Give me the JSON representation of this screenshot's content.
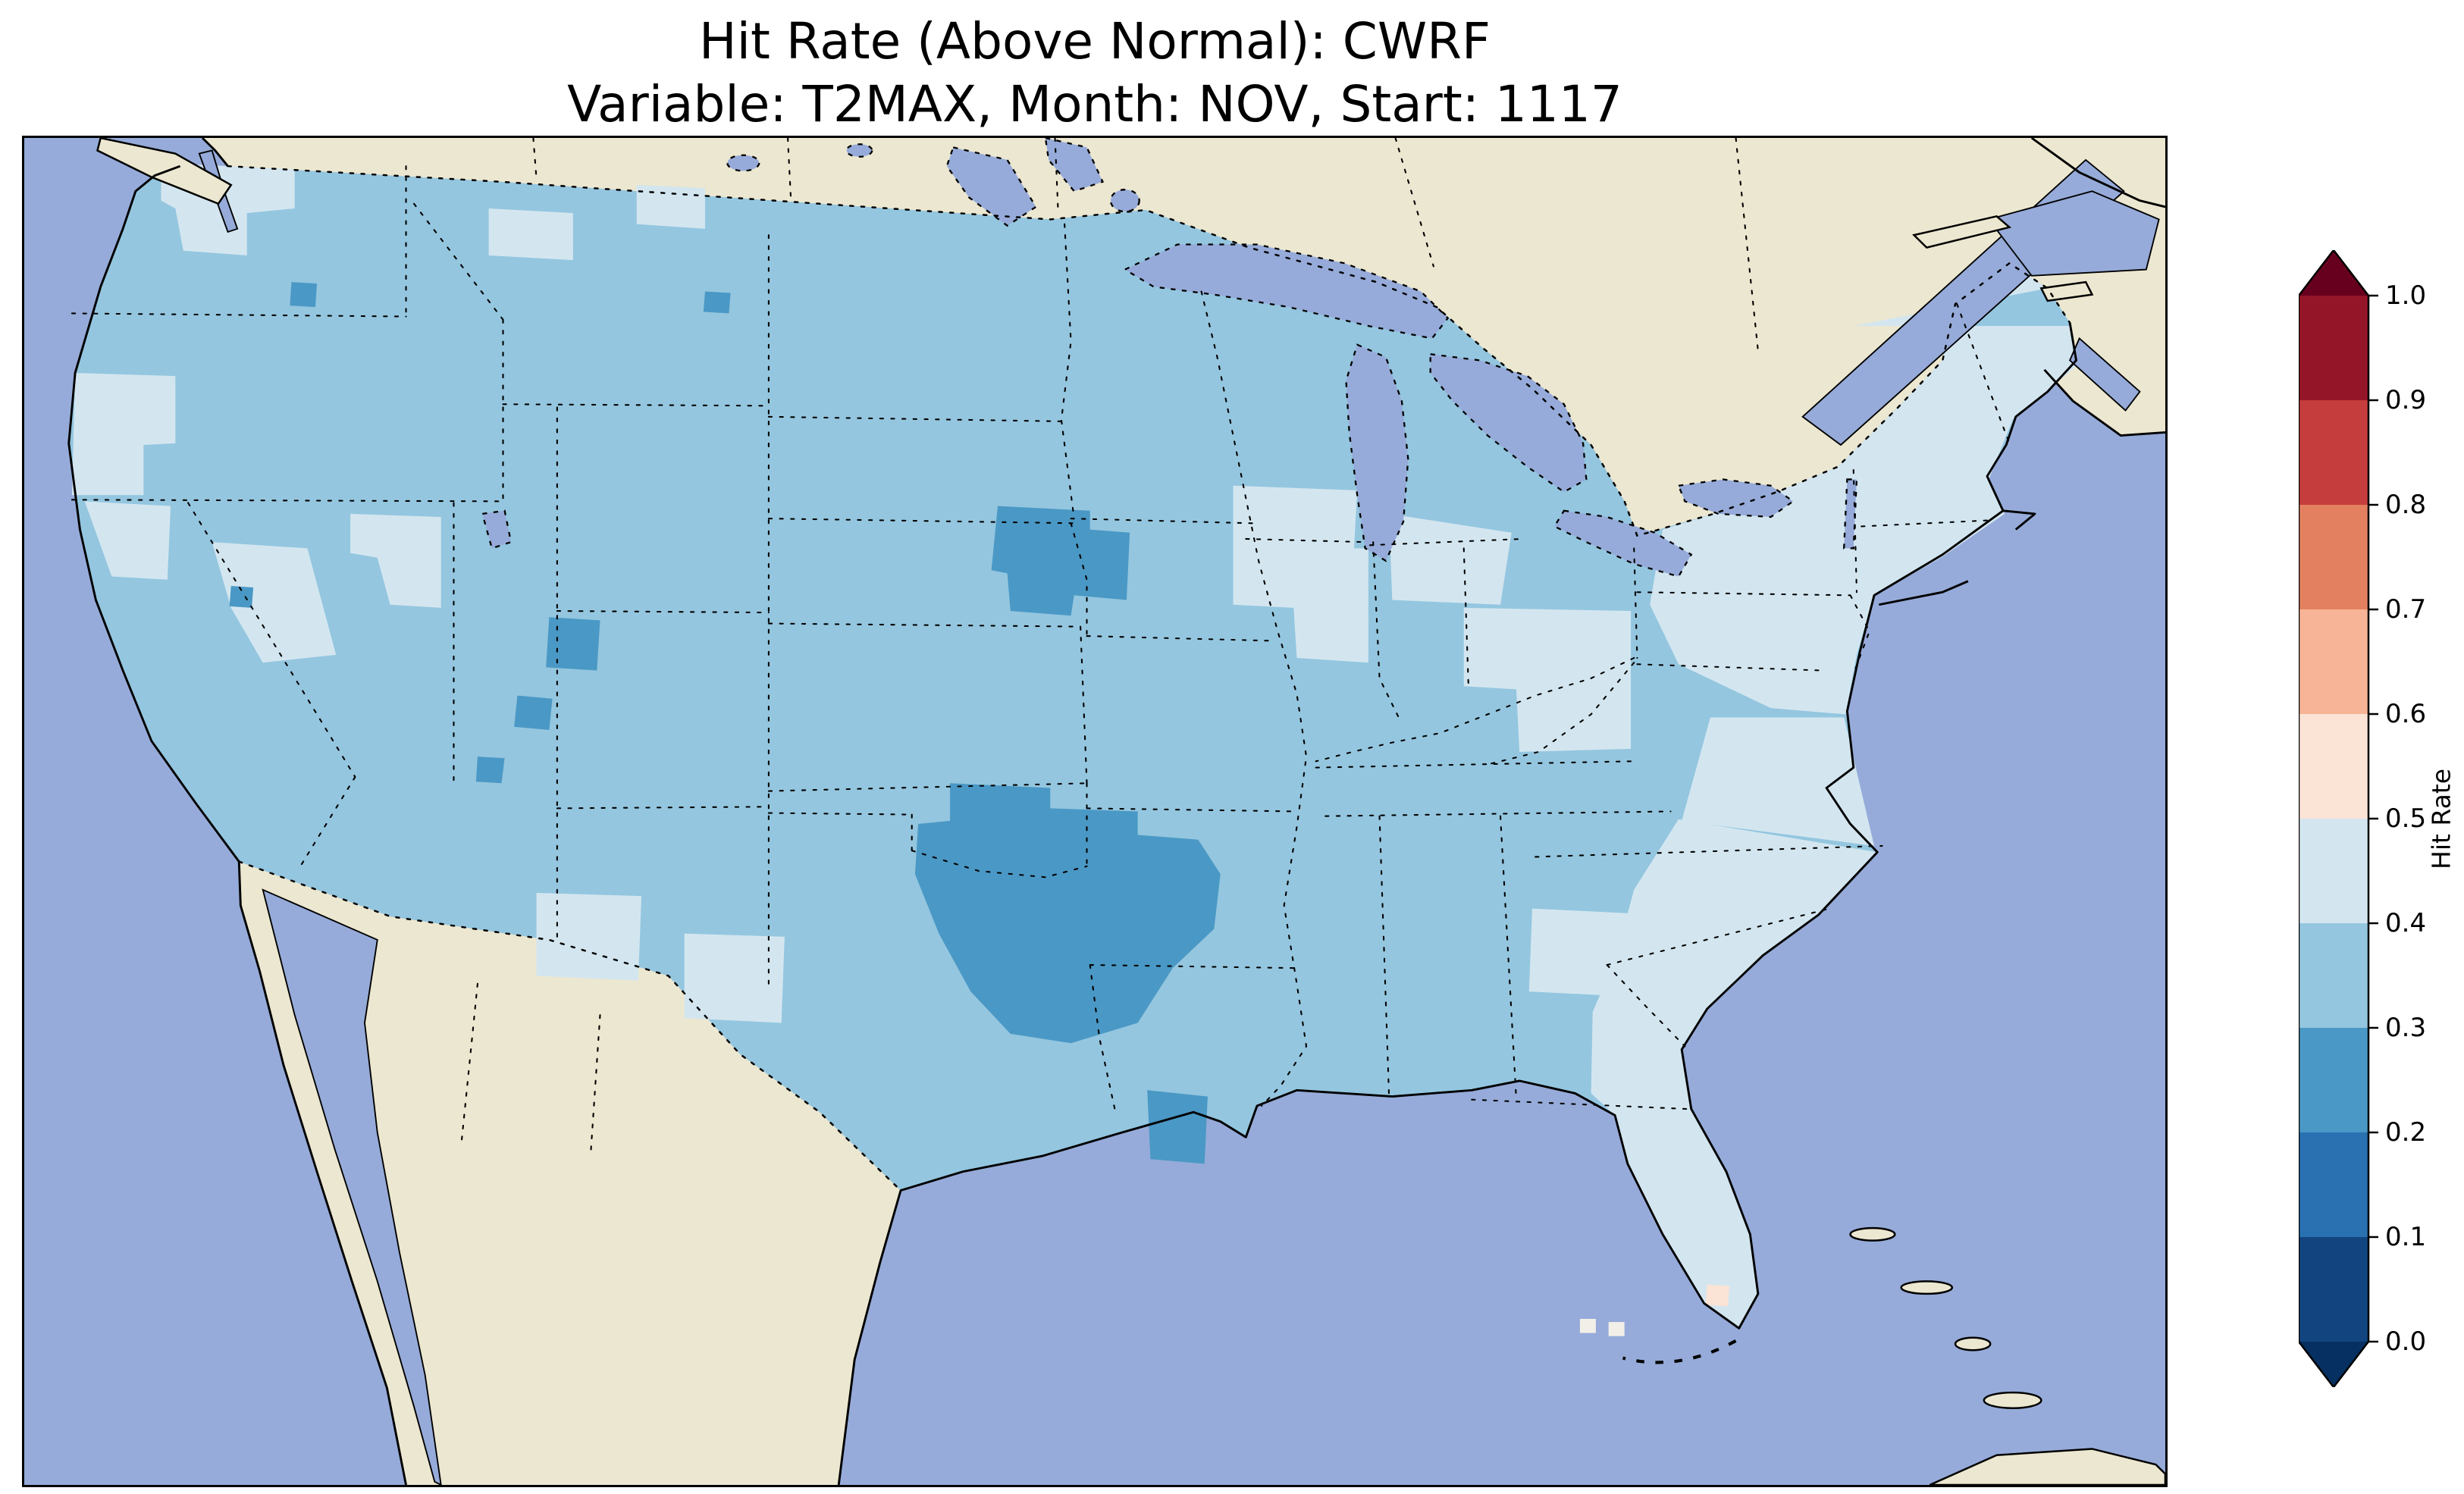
{
  "figure": {
    "title_line1": "Hit Rate (Above Normal): CWRF",
    "title_line2": "Variable: T2MAX, Month: NOV, Start: 1117",
    "background": "#ffffff"
  },
  "colorbar": {
    "label": "Hit Rate",
    "tick_labels_top_to_bottom": [
      "1.0",
      "0.9",
      "0.8",
      "0.7",
      "0.6",
      "0.5",
      "0.4",
      "0.3",
      "0.2",
      "0.1",
      "0.0"
    ],
    "min": 0.0,
    "max": 1.0,
    "step": 0.1,
    "extend": "both"
  },
  "palette": {
    "under": "#053061",
    "bins_low_to_high": [
      "#12457f",
      "#2971b1",
      "#4a98c5",
      "#94c6df",
      "#d3e6f0",
      "#fbe3d6",
      "#f7b496",
      "#e38060",
      "#c53e3d",
      "#951528"
    ],
    "over": "#67001f"
  },
  "map_colors": {
    "ocean": "#96abd9",
    "land": "#ece7d0",
    "keys_cells": "#f1efe8",
    "line": "#000000"
  },
  "chart_data": {
    "type": "heatmap",
    "title": "Hit Rate (Above Normal): CWRF",
    "subtitle": "Variable: T2MAX, Month: NOV, Start: 1117",
    "model": "CWRF",
    "metric": "Hit Rate (Above Normal)",
    "variable": "T2MAX",
    "month": "NOV",
    "start": "1117",
    "colorbar_label": "Hit Rate",
    "value_range": [
      0.0,
      1.0
    ],
    "tick_step": 0.1,
    "colormap": "RdBu_r, 10 discrete bins with triangular over/under extensions",
    "region": "Continental United States (CONUS) gridded field over North America basemap",
    "legend_position": "right vertical colorbar",
    "values_by_region": [
      {
        "region": "most of the central, western and southern US",
        "hit_rate_bin": "0.3-0.4"
      },
      {
        "region": "Northeast (NY, PA, New England), lower Michigan, Wisconsin-Illinois, Ohio valley, Southeast coastal plain and Florida, Pacific Northwest coast, Sierra Nevada / western Nevada, west Texas and central New Mexico patches",
        "hit_rate_bin": "0.4-0.5"
      },
      {
        "region": "large Oklahoma / north-central Texas patch, Iowa / eastern Nebraska patch, Texas Gulf-coast spot, scattered single cells in Utah, Colorado, Washington, California, North Dakota",
        "hit_rate_bin": "0.2-0.3"
      },
      {
        "region": "single cell near Miami, south Florida",
        "hit_rate_bin": "0.5-0.6"
      },
      {
        "region": "two small cells over the Florida Keys waters",
        "hit_rate_bin": "near 0.5 (white)"
      }
    ]
  }
}
